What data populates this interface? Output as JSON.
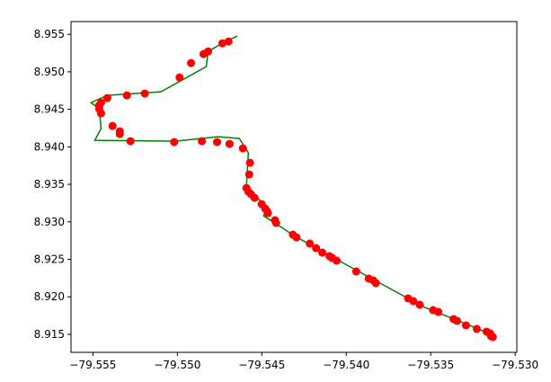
{
  "chart_data": {
    "type": "line",
    "xlim": [
      -79.5563,
      -79.5299
    ],
    "ylim": [
      8.9126,
      8.9567
    ],
    "xticks": [
      {
        "value": -79.555,
        "label": "−79.555"
      },
      {
        "value": -79.55,
        "label": "−79.550"
      },
      {
        "value": -79.545,
        "label": "−79.545"
      },
      {
        "value": -79.54,
        "label": "−79.540"
      },
      {
        "value": -79.535,
        "label": "−79.535"
      },
      {
        "value": -79.53,
        "label": "−79.530"
      }
    ],
    "yticks": [
      8.915,
      {
        "value": 8.92,
        "label": "8.920"
      },
      8.925,
      {
        "value": 8.93,
        "label": "8.930"
      },
      8.935,
      {
        "value": 8.94,
        "label": "8.940"
      },
      8.945,
      {
        "value": 8.95,
        "label": "8.950"
      },
      8.955
    ],
    "series": [
      {
        "kind": "line",
        "color": "#008000",
        "x": [
          -79.54644,
          -79.54707,
          -79.54818,
          -79.54829,
          -79.55098,
          -79.55415,
          -79.55511,
          -79.55463,
          -79.55452,
          -79.55489,
          -79.55014,
          -79.5476,
          -79.54633,
          -79.5458,
          -79.54591,
          -79.54538,
          -79.54459,
          -79.5449,
          -79.543,
          -79.54073,
          -79.53634,
          -79.53534,
          -79.53217,
          -79.53132
        ],
        "values": [
          8.95476,
          8.95416,
          8.95272,
          8.95069,
          8.94734,
          8.94686,
          8.9459,
          8.94506,
          8.94243,
          8.94087,
          8.94075,
          8.94135,
          8.94111,
          8.93919,
          8.93488,
          8.93344,
          8.93177,
          8.93081,
          8.92805,
          8.92518,
          8.91979,
          8.91859,
          8.91572,
          8.91476
        ]
      },
      {
        "kind": "scatter",
        "color": "#ff0000",
        "x": [
          -79.54697,
          -79.54734,
          -79.54818,
          -79.54845,
          -79.54919,
          -79.54987,
          -79.55193,
          -79.55299,
          -79.55415,
          -79.55452,
          -79.55463,
          -79.55463,
          -79.55452,
          -79.55384,
          -79.55341,
          -79.55341,
          -79.55278,
          -79.55019,
          -79.54855,
          -79.54765,
          -79.54691,
          -79.54612,
          -79.5457,
          -79.54575,
          -79.54591,
          -79.5458,
          -79.54564,
          -79.54543,
          -79.54501,
          -79.5448,
          -79.54469,
          -79.54464,
          -79.54422,
          -79.54416,
          -79.54316,
          -79.54295,
          -79.54216,
          -79.54179,
          -79.54142,
          -79.54099,
          -79.54083,
          -79.54057,
          -79.53941,
          -79.53867,
          -79.5384,
          -79.53825,
          -79.53634,
          -79.53603,
          -79.53565,
          -79.53486,
          -79.53455,
          -79.53365,
          -79.53344,
          -79.53291,
          -79.53227,
          -79.53169,
          -79.53148,
          -79.53143,
          -79.53132
        ],
        "values": [
          8.95404,
          8.9538,
          8.95272,
          8.95237,
          8.95117,
          8.94925,
          8.9471,
          8.94686,
          8.9465,
          8.9459,
          8.94554,
          8.94506,
          8.94446,
          8.94278,
          8.94207,
          8.94171,
          8.94075,
          8.94063,
          8.94075,
          8.94063,
          8.94039,
          8.93979,
          8.93787,
          8.93632,
          8.93452,
          8.93404,
          8.93368,
          8.9332,
          8.93236,
          8.93177,
          8.93141,
          8.93117,
          8.93021,
          8.92985,
          8.92829,
          8.92793,
          8.9271,
          8.9265,
          8.9259,
          8.92542,
          8.92518,
          8.92482,
          8.92338,
          8.92243,
          8.92219,
          8.92183,
          8.91979,
          8.91943,
          8.91895,
          8.91823,
          8.91799,
          8.91704,
          8.9168,
          8.9162,
          8.91572,
          8.91536,
          8.91512,
          8.91476,
          8.91464
        ]
      }
    ]
  }
}
